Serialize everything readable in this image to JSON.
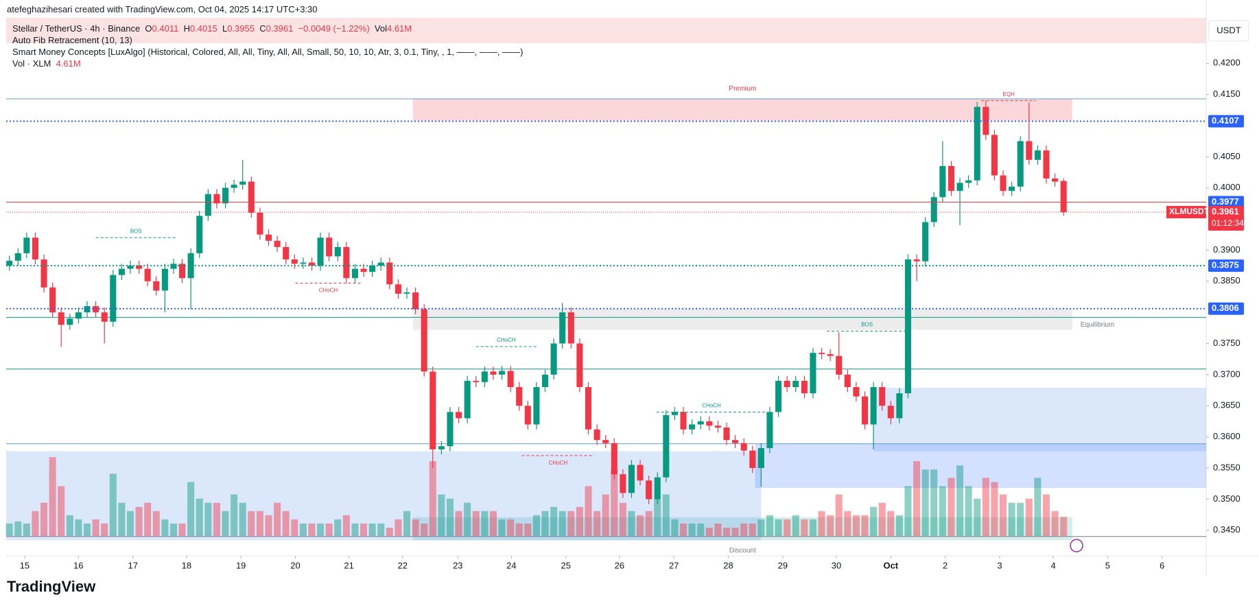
{
  "header": {
    "credit": "atefeghazihesari created with TradingView.com, Oct 04, 2025 14:17 UTC+3:30",
    "symbol": "Stellar / TetherUS · 4h · Binance",
    "o_label": "O",
    "o": "0.4011",
    "h_label": "H",
    "h": "0.4015",
    "l_label": "L",
    "l": "0.3955",
    "c_label": "C",
    "c": "0.3961",
    "change": "−0.0049 (−1.22%)",
    "vol_label": "Vol",
    "vol": "4.61M",
    "indicator1": "Auto Fib Retracement (10, 13)",
    "indicator2": "Smart Money Concepts [LuxAlgo] (Historical, Colored, All, All, Tiny, All, All, Small, 50, 10, 10, Atr, 3, 0.1, Tiny, , 1, ——, ——, ——)",
    "indicator3": "Vol · XLM",
    "indicator3_value": "4.61M",
    "currency": "USDT",
    "logo": "TradingView"
  },
  "chart_data": {
    "type": "candlestick",
    "up_color": "#089981",
    "down_color": "#f23645",
    "series": [
      {
        "name": "XLMUSDT",
        "open": [
          0.3875,
          0.3883,
          0.3895,
          0.392,
          0.3885,
          0.384,
          0.38,
          0.378,
          0.379,
          0.38,
          0.381,
          0.38,
          0.3785,
          0.386,
          0.387,
          0.3875,
          0.387,
          0.385,
          0.3835,
          0.387,
          0.3878,
          0.3855,
          0.3895,
          0.3955,
          0.399,
          0.3975,
          0.4,
          0.4005,
          0.401,
          0.396,
          0.3925,
          0.3915,
          0.3905,
          0.3885,
          0.3878,
          0.388,
          0.3875,
          0.392,
          0.389,
          0.3905,
          0.3855,
          0.387,
          0.3865,
          0.3875,
          0.388,
          0.3845,
          0.383,
          0.3832,
          0.3805,
          0.3705,
          0.358,
          0.3585,
          0.364,
          0.363,
          0.369,
          0.3688,
          0.3705,
          0.37,
          0.3706,
          0.368,
          0.365,
          0.362,
          0.368,
          0.37,
          0.375,
          0.38,
          0.375,
          0.368,
          0.3612,
          0.3595,
          0.359,
          0.354,
          0.351,
          0.3555,
          0.353,
          0.35,
          0.3535,
          0.3635,
          0.364,
          0.3612,
          0.362,
          0.3625,
          0.3618,
          0.3615,
          0.3595,
          0.359,
          0.3578,
          0.355,
          0.3582,
          0.364,
          0.369,
          0.368,
          0.369,
          0.367,
          0.3735,
          0.3733,
          0.373,
          0.37,
          0.368,
          0.3665,
          0.362,
          0.368,
          0.365,
          0.363,
          0.367,
          0.3885,
          0.3882,
          0.3945,
          0.3985,
          0.4035,
          0.3995,
          0.4008,
          0.4012,
          0.413,
          0.4085,
          0.402,
          0.3995,
          0.4002,
          0.4075,
          0.4045,
          0.406,
          0.4015,
          0.4011
        ],
        "high": [
          0.3891,
          0.3903,
          0.3928,
          0.3928,
          0.3893,
          0.3848,
          0.3808,
          0.3798,
          0.3808,
          0.3818,
          0.3818,
          0.3808,
          0.3868,
          0.3878,
          0.3883,
          0.3883,
          0.3878,
          0.3858,
          0.3878,
          0.3886,
          0.3886,
          0.3903,
          0.3963,
          0.3998,
          0.3998,
          0.4008,
          0.4013,
          0.4045,
          0.4018,
          0.3968,
          0.3933,
          0.3923,
          0.3913,
          0.3893,
          0.3888,
          0.3888,
          0.3928,
          0.3928,
          0.3913,
          0.3913,
          0.3878,
          0.3878,
          0.3883,
          0.3888,
          0.3888,
          0.3853,
          0.384,
          0.384,
          0.3813,
          0.3713,
          0.3593,
          0.3648,
          0.3648,
          0.3698,
          0.3698,
          0.3713,
          0.3713,
          0.3714,
          0.3714,
          0.3688,
          0.3658,
          0.3688,
          0.3708,
          0.3758,
          0.3815,
          0.3808,
          0.3758,
          0.3688,
          0.362,
          0.3603,
          0.3598,
          0.3548,
          0.3563,
          0.3563,
          0.3538,
          0.3543,
          0.3643,
          0.3648,
          0.3648,
          0.3628,
          0.3633,
          0.3633,
          0.3626,
          0.3623,
          0.3603,
          0.3598,
          0.3586,
          0.359,
          0.3648,
          0.3698,
          0.3698,
          0.3698,
          0.3698,
          0.3743,
          0.3743,
          0.3741,
          0.3768,
          0.3708,
          0.3688,
          0.3673,
          0.3688,
          0.3688,
          0.3658,
          0.3678,
          0.3893,
          0.3893,
          0.3953,
          0.3993,
          0.4075,
          0.4043,
          0.4016,
          0.402,
          0.4138,
          0.414,
          0.4093,
          0.4028,
          0.401,
          0.4083,
          0.4137,
          0.4068,
          0.4068,
          0.4023,
          0.4015
        ],
        "low": [
          0.3867,
          0.3875,
          0.3887,
          0.3877,
          0.3832,
          0.3792,
          0.3745,
          0.3772,
          0.3782,
          0.3792,
          0.3792,
          0.375,
          0.3777,
          0.3852,
          0.3862,
          0.3862,
          0.3842,
          0.3827,
          0.38,
          0.3862,
          0.3847,
          0.3805,
          0.3887,
          0.3947,
          0.3967,
          0.3967,
          0.3992,
          0.3997,
          0.3952,
          0.3917,
          0.3907,
          0.3897,
          0.3877,
          0.387,
          0.387,
          0.3867,
          0.3867,
          0.3882,
          0.3882,
          0.3847,
          0.3847,
          0.3857,
          0.3857,
          0.3867,
          0.3837,
          0.3822,
          0.3822,
          0.3797,
          0.3697,
          0.355,
          0.3572,
          0.3577,
          0.3622,
          0.3622,
          0.368,
          0.368,
          0.3692,
          0.3692,
          0.3672,
          0.3642,
          0.3612,
          0.3612,
          0.3672,
          0.3692,
          0.3742,
          0.3742,
          0.3672,
          0.3604,
          0.3587,
          0.3582,
          0.3532,
          0.3502,
          0.3502,
          0.3522,
          0.3492,
          0.3492,
          0.3527,
          0.3627,
          0.3604,
          0.3604,
          0.3612,
          0.361,
          0.3607,
          0.3587,
          0.3582,
          0.357,
          0.3542,
          0.352,
          0.3574,
          0.3632,
          0.3672,
          0.3672,
          0.3662,
          0.3662,
          0.3725,
          0.3722,
          0.3692,
          0.3672,
          0.3657,
          0.3612,
          0.358,
          0.3642,
          0.362,
          0.3622,
          0.3662,
          0.385,
          0.3874,
          0.3937,
          0.3977,
          0.3987,
          0.394,
          0.4,
          0.4004,
          0.4077,
          0.4012,
          0.3987,
          0.3987,
          0.3994,
          0.4037,
          0.4037,
          0.4007,
          0.4002,
          0.3955
        ],
        "close": [
          0.3883,
          0.3895,
          0.392,
          0.3885,
          0.384,
          0.38,
          0.378,
          0.379,
          0.38,
          0.381,
          0.38,
          0.3785,
          0.386,
          0.387,
          0.3875,
          0.387,
          0.385,
          0.3835,
          0.387,
          0.3878,
          0.3855,
          0.3895,
          0.3955,
          0.399,
          0.3975,
          0.4,
          0.4005,
          0.401,
          0.396,
          0.3925,
          0.3915,
          0.3905,
          0.3885,
          0.3878,
          0.388,
          0.3875,
          0.392,
          0.389,
          0.3905,
          0.3855,
          0.387,
          0.3865,
          0.3875,
          0.388,
          0.3845,
          0.383,
          0.3832,
          0.3805,
          0.3705,
          0.358,
          0.3585,
          0.364,
          0.363,
          0.369,
          0.3688,
          0.3705,
          0.37,
          0.3706,
          0.368,
          0.365,
          0.362,
          0.368,
          0.37,
          0.375,
          0.38,
          0.375,
          0.368,
          0.3612,
          0.3595,
          0.359,
          0.354,
          0.351,
          0.3555,
          0.353,
          0.35,
          0.3535,
          0.3635,
          0.364,
          0.3612,
          0.362,
          0.3625,
          0.3618,
          0.3615,
          0.3595,
          0.359,
          0.3578,
          0.355,
          0.3582,
          0.364,
          0.369,
          0.368,
          0.369,
          0.367,
          0.3735,
          0.3733,
          0.373,
          0.37,
          0.368,
          0.3665,
          0.362,
          0.368,
          0.365,
          0.363,
          0.367,
          0.3885,
          0.3882,
          0.3945,
          0.3985,
          0.4035,
          0.3995,
          0.4008,
          0.4012,
          0.413,
          0.4085,
          0.402,
          0.3995,
          0.4002,
          0.4075,
          0.4045,
          0.406,
          0.4015,
          0.401,
          0.3961
        ]
      }
    ],
    "volume": [
      3,
      3.5,
      3,
      6,
      8,
      19,
      12,
      5,
      4,
      3,
      4,
      3,
      15,
      8,
      6,
      7,
      8,
      6,
      4,
      3,
      3,
      13,
      9,
      8,
      8,
      6,
      10,
      8,
      6,
      6,
      5,
      8,
      6,
      4,
      3,
      3,
      3,
      3,
      4,
      5,
      3,
      3,
      3,
      3,
      2,
      4,
      6,
      4,
      3,
      18,
      10,
      9,
      6,
      8,
      6,
      6,
      6,
      4,
      4,
      3,
      3,
      5,
      6,
      7,
      6,
      6,
      7,
      12,
      6,
      10,
      16,
      8,
      6,
      5,
      6,
      9,
      10,
      4,
      3,
      3,
      3,
      2,
      3,
      2,
      2,
      3,
      3,
      4,
      5,
      4,
      4,
      5,
      4,
      4,
      6,
      5,
      10,
      6,
      5,
      5,
      7,
      8,
      6,
      5,
      12,
      18,
      16,
      16,
      12,
      14,
      17,
      12,
      9,
      14,
      13,
      10,
      8,
      8,
      9,
      14,
      10,
      6,
      4.61
    ],
    "xlim": [
      -0.37,
      138.5
    ],
    "xticks": [
      {
        "value": 1.77,
        "label": "15"
      },
      {
        "value": 7.99,
        "label": "16"
      },
      {
        "value": 14.3,
        "label": "17"
      },
      {
        "value": 20.5,
        "label": "18"
      },
      {
        "value": 26.8,
        "label": "19"
      },
      {
        "value": 33.1,
        "label": "20"
      },
      {
        "value": 39.3,
        "label": "21"
      },
      {
        "value": 45.5,
        "label": "22"
      },
      {
        "value": 51.9,
        "label": "23"
      },
      {
        "value": 58.1,
        "label": "24"
      },
      {
        "value": 64.4,
        "label": "25"
      },
      {
        "value": 70.6,
        "label": "26"
      },
      {
        "value": 76.9,
        "label": "27"
      },
      {
        "value": 83.2,
        "label": "28"
      },
      {
        "value": 89.5,
        "label": "29"
      },
      {
        "value": 95.7,
        "label": "30"
      },
      {
        "value": 102.0,
        "label": "Oct"
      },
      {
        "value": 108.3,
        "label": "2"
      },
      {
        "value": 114.6,
        "label": "3"
      },
      {
        "value": 120.8,
        "label": "4"
      },
      {
        "value": 127.1,
        "label": "5"
      },
      {
        "value": 133.4,
        "label": "6"
      }
    ],
    "ylim": [
      0.341,
      0.4273
    ],
    "yticks": [
      {
        "value": 0.42,
        "label": "0.4200"
      },
      {
        "value": 0.415,
        "label": "0.4150"
      },
      {
        "value": 0.405,
        "label": "0.4050"
      },
      {
        "value": 0.4,
        "label": "0.4000"
      },
      {
        "value": 0.39,
        "label": "0.3900"
      },
      {
        "value": 0.385,
        "label": "0.3850"
      },
      {
        "value": 0.375,
        "label": "0.3750"
      },
      {
        "value": 0.37,
        "label": "0.3700"
      },
      {
        "value": 0.365,
        "label": "0.3650"
      },
      {
        "value": 0.36,
        "label": "0.3600"
      },
      {
        "value": 0.355,
        "label": "0.3550"
      },
      {
        "value": 0.35,
        "label": "0.3500"
      },
      {
        "value": 0.345,
        "label": "0.3450"
      }
    ],
    "grid": false,
    "price_lines": [
      {
        "value": 0.4107,
        "color": "#2962ff",
        "style": "dotted"
      },
      {
        "value": 0.3977,
        "color": "#f23645",
        "style": "solid"
      },
      {
        "value": 0.3875,
        "color": "#089981",
        "style": "dotted"
      },
      {
        "value": 0.3806,
        "color": "#2962ff",
        "style": "dotted"
      }
    ],
    "level_lines": [
      {
        "value": 0.4143,
        "color": "#5b9bd5"
      },
      {
        "value": 0.3792,
        "color": "#089981"
      },
      {
        "value": 0.3709,
        "color": "#089981"
      },
      {
        "value": 0.3589,
        "color": "#5b9bd5"
      },
      {
        "value": 0.344,
        "color": "#787b86"
      }
    ],
    "current_price": {
      "value": 0.3961,
      "countdown": "01:12:34",
      "color": "#f23645"
    },
    "zones": [
      {
        "label": "Premium",
        "from": 46.7,
        "to": 123,
        "low": 0.4108,
        "high": 0.41435,
        "color": "#f23645"
      },
      {
        "label": "Equilibrium",
        "from": 46.7,
        "to": 123,
        "low": 0.3772,
        "high": 0.3806,
        "color": "#9e9e9e"
      },
      {
        "label": "Discount",
        "from": 46.7,
        "to": 123,
        "low": 0.3434,
        "high": 0.3471,
        "color": "#26a69a"
      },
      {
        "from": -0.37,
        "to": 87,
        "low": 0.3434,
        "high": 0.3577,
        "color": "#4d8bf0"
      },
      {
        "from": 86.3,
        "to": 138.5,
        "low": 0.3518,
        "high": 0.3589,
        "color": "#2962ff"
      },
      {
        "from": 100,
        "to": 138.5,
        "low": 0.3577,
        "high": 0.3679,
        "color": "#4d8bf0"
      }
    ],
    "structures": [
      {
        "label": "BOS",
        "price": 0.392,
        "from": 10.0,
        "to": 19.3,
        "color": "#089981"
      },
      {
        "label": "CHoCH",
        "price": 0.3847,
        "from": 33.1,
        "to": 40.7,
        "color": "#f23645"
      },
      {
        "label": "CHoCH",
        "price": 0.3745,
        "from": 54,
        "to": 61,
        "color": "#089981"
      },
      {
        "label": "CHoCH",
        "price": 0.357,
        "from": 59.3,
        "to": 67.7,
        "color": "#f23645"
      },
      {
        "label": "CHoCH",
        "price": 0.364,
        "from": 74.9,
        "to": 87.6,
        "color": "#089981"
      },
      {
        "label": "BOS",
        "price": 0.377,
        "from": 94.6,
        "to": 103.9,
        "color": "#089981"
      },
      {
        "label": "EQH",
        "price": 0.414,
        "from": 112.5,
        "to": 118.8,
        "color": "#f23645"
      }
    ]
  }
}
